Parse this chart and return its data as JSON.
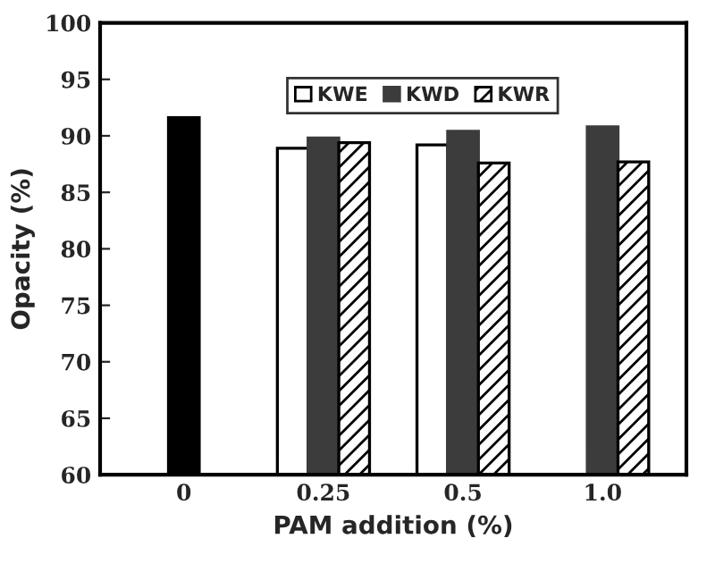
{
  "chart_data": {
    "type": "bar",
    "xlabel": "PAM addition (%)",
    "ylabel": "Opacity (%)",
    "categories": [
      "0",
      "0.25",
      "0.5",
      "1.0"
    ],
    "series": [
      {
        "color": "#000000",
        "values": [
          91.6,
          null,
          null,
          null
        ]
      },
      {
        "name": "KWE",
        "color": "#ffffff",
        "values": [
          null,
          88.9,
          89.2,
          null
        ]
      },
      {
        "name": "KWD",
        "color": "#3c3c3c",
        "values": [
          null,
          89.8,
          90.4,
          90.8
        ]
      },
      {
        "name": "KWR",
        "color": "#000000",
        "values": [
          null,
          89.4,
          87.6,
          87.7
        ]
      }
    ],
    "ylim": [
      60,
      100
    ],
    "yticks": [
      60,
      65,
      70,
      75,
      80,
      85,
      90,
      95,
      100
    ],
    "grid": false,
    "legend": "top"
  }
}
